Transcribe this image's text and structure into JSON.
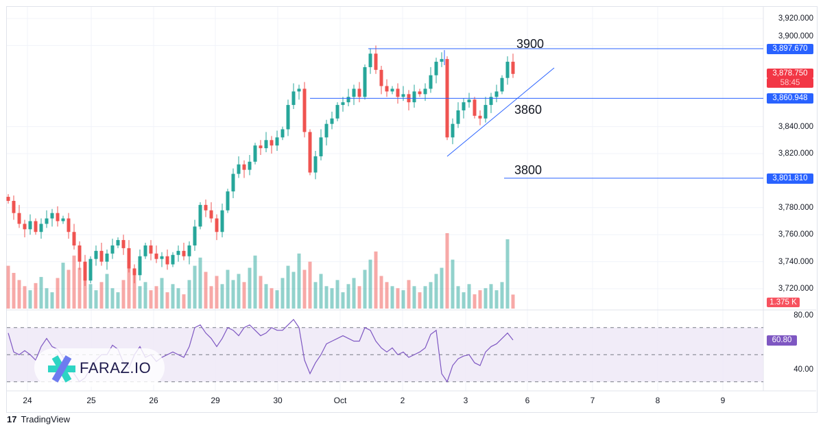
{
  "chart_data": {
    "type": "candlestick",
    "price_axis": {
      "ticks": [
        "3,920.000",
        "3,900.000",
        "3,840.000",
        "3,820.000",
        "3,780.000",
        "3,760.000",
        "3,740.000",
        "3,720.000"
      ],
      "tick_values": [
        3920,
        3900,
        3840,
        3820,
        3780,
        3760,
        3740,
        3720
      ],
      "range": [
        3712,
        3930
      ]
    },
    "time_axis": {
      "ticks": [
        "24",
        "25",
        "26",
        "29",
        "30",
        "Oct",
        "2",
        "3",
        "6",
        "7",
        "8",
        "9"
      ]
    },
    "closes": [
      3785,
      3776,
      3768,
      3764,
      3770,
      3762,
      3768,
      3772,
      3776,
      3770,
      3772,
      3762,
      3752,
      3740,
      3726,
      3742,
      3748,
      3740,
      3746,
      3752,
      3756,
      3750,
      3735,
      3730,
      3744,
      3752,
      3746,
      3742,
      3744,
      3738,
      3745,
      3748,
      3744,
      3752,
      3766,
      3782,
      3778,
      3772,
      3762,
      3778,
      3792,
      3805,
      3812,
      3808,
      3814,
      3826,
      3824,
      3830,
      3826,
      3832,
      3838,
      3856,
      3866,
      3868,
      3836,
      3806,
      3818,
      3832,
      3842,
      3846,
      3856,
      3858,
      3862,
      3868,
      3862,
      3884,
      3894,
      3882,
      3870,
      3866,
      3868,
      3862,
      3864,
      3858,
      3866,
      3864,
      3868,
      3878,
      3888,
      3890,
      3832,
      3842,
      3852,
      3858,
      3860,
      3848,
      3846,
      3856,
      3862,
      3866,
      3876,
      3888,
      3879
    ],
    "volumes": [
      4.2,
      3.5,
      2.8,
      2.2,
      1.8,
      2.5,
      3.1,
      2.0,
      1.6,
      3.0,
      4.5,
      3.8,
      5.2,
      4.0,
      3.2,
      2.4,
      1.8,
      2.6,
      3.4,
      2.0,
      1.6,
      2.8,
      4.0,
      3.5,
      2.2,
      2.6,
      1.8,
      2.2,
      3.0,
      1.6,
      2.4,
      2.0,
      1.4,
      2.8,
      4.2,
      5.0,
      3.6,
      2.2,
      3.2,
      2.4,
      3.8,
      2.8,
      3.4,
      2.6,
      4.0,
      5.2,
      3.2,
      2.4,
      2.0,
      1.8,
      3.0,
      4.2,
      3.6,
      5.4,
      3.8,
      4.6,
      2.6,
      3.4,
      2.2,
      2.0,
      2.8,
      1.6,
      2.4,
      3.0,
      2.2,
      3.8,
      4.8,
      5.6,
      3.2,
      2.6,
      2.2,
      2.0,
      1.8,
      2.8,
      2.2,
      1.6,
      2.2,
      2.6,
      3.4,
      4.0,
      7.4,
      4.8,
      2.2,
      1.6,
      2.4,
      1.4,
      1.8,
      2.0,
      2.4,
      1.8,
      2.6,
      6.8,
      1.375
    ],
    "volume_label": "1.375 K",
    "rsi": {
      "values": [
        66,
        52,
        50,
        53,
        50,
        46,
        56,
        62,
        56,
        54,
        48,
        42,
        36,
        30,
        33,
        40,
        46,
        50,
        50,
        57,
        54,
        44,
        40,
        50,
        56,
        48,
        50,
        45,
        48,
        50,
        52,
        50,
        48,
        56,
        70,
        72,
        66,
        62,
        56,
        62,
        70,
        68,
        64,
        70,
        72,
        68,
        64,
        66,
        70,
        68,
        68,
        72,
        76,
        70,
        46,
        36,
        44,
        50,
        58,
        60,
        62,
        64,
        62,
        60,
        60,
        70,
        68,
        60,
        55,
        52,
        55,
        50,
        52,
        48,
        50,
        52,
        55,
        65,
        68,
        36,
        30,
        42,
        47,
        49,
        50,
        44,
        42,
        52,
        56,
        58,
        62,
        66,
        60.8
      ],
      "current": "60.80",
      "ticks": [
        "80.00",
        "40.00"
      ],
      "tick_values": [
        80,
        40
      ],
      "bands": [
        70,
        50,
        30
      ]
    },
    "levels": [
      {
        "label": "3900",
        "price_label": "3,897.670",
        "value": 3897.67
      },
      {
        "label": "3860",
        "price_label": "3,860.948",
        "value": 3860.948
      },
      {
        "label": "3800",
        "price_label": "3,801.810",
        "value": 3801.81
      }
    ],
    "trendline": {
      "from": [
        3819,
        80.2
      ],
      "to": [
        3884,
        99.5
      ]
    },
    "current_price": {
      "label": "3,878.750",
      "countdown": "58:45",
      "value": 3878.75
    }
  },
  "colors": {
    "up": "#26a69a",
    "down": "#ef5350",
    "level": "#2962ff",
    "rsi": "#7e57c2",
    "rsi_bg": "#ede7f6"
  },
  "branding": {
    "watermark": "FARAZ.IO",
    "footer": "TradingView"
  }
}
